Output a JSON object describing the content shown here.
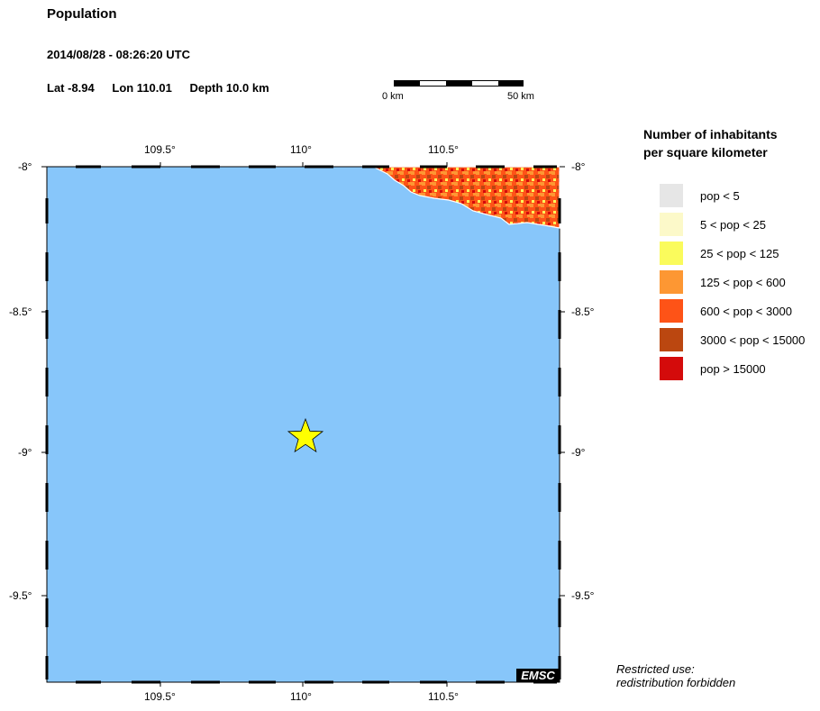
{
  "header": {
    "title": "Population",
    "datetime": "2014/08/28 - 08:26:20 UTC",
    "lat": "Lat -8.94",
    "lon": "Lon 110.01",
    "depth": "Depth  10.0 km"
  },
  "scale": {
    "start_label": "0 km",
    "end_label": "50 km"
  },
  "map": {
    "lon_ticks": [
      "109.5°",
      "110°",
      "110.5°"
    ],
    "lat_ticks": [
      "-8°",
      "-8.5°",
      "-9°",
      "-9.5°"
    ],
    "epicenter_lat": -8.94,
    "epicenter_lon": 110.01,
    "sea_color": "#87c6fa",
    "star_color": "#ffff00",
    "watermark": "EMSC"
  },
  "legend": {
    "title_line1": "Number of inhabitants",
    "title_line2": "per square kilometer",
    "items": [
      {
        "label": "pop < 5",
        "color": "#e6e6e6"
      },
      {
        "label": "5 < pop < 25",
        "color": "#fcf9c9"
      },
      {
        "label": "25 < pop < 125",
        "color": "#fafb5c"
      },
      {
        "label": "125 < pop < 600",
        "color": "#fd9733"
      },
      {
        "label": "600 < pop < 3000",
        "color": "#fe5317"
      },
      {
        "label": "3000 < pop < 15000",
        "color": "#bb4710"
      },
      {
        "label": "pop > 15000",
        "color": "#d40b0b"
      }
    ]
  },
  "footer": {
    "restricted_line1": "Restricted use:",
    "restricted_line2": "redistribution forbidden"
  }
}
